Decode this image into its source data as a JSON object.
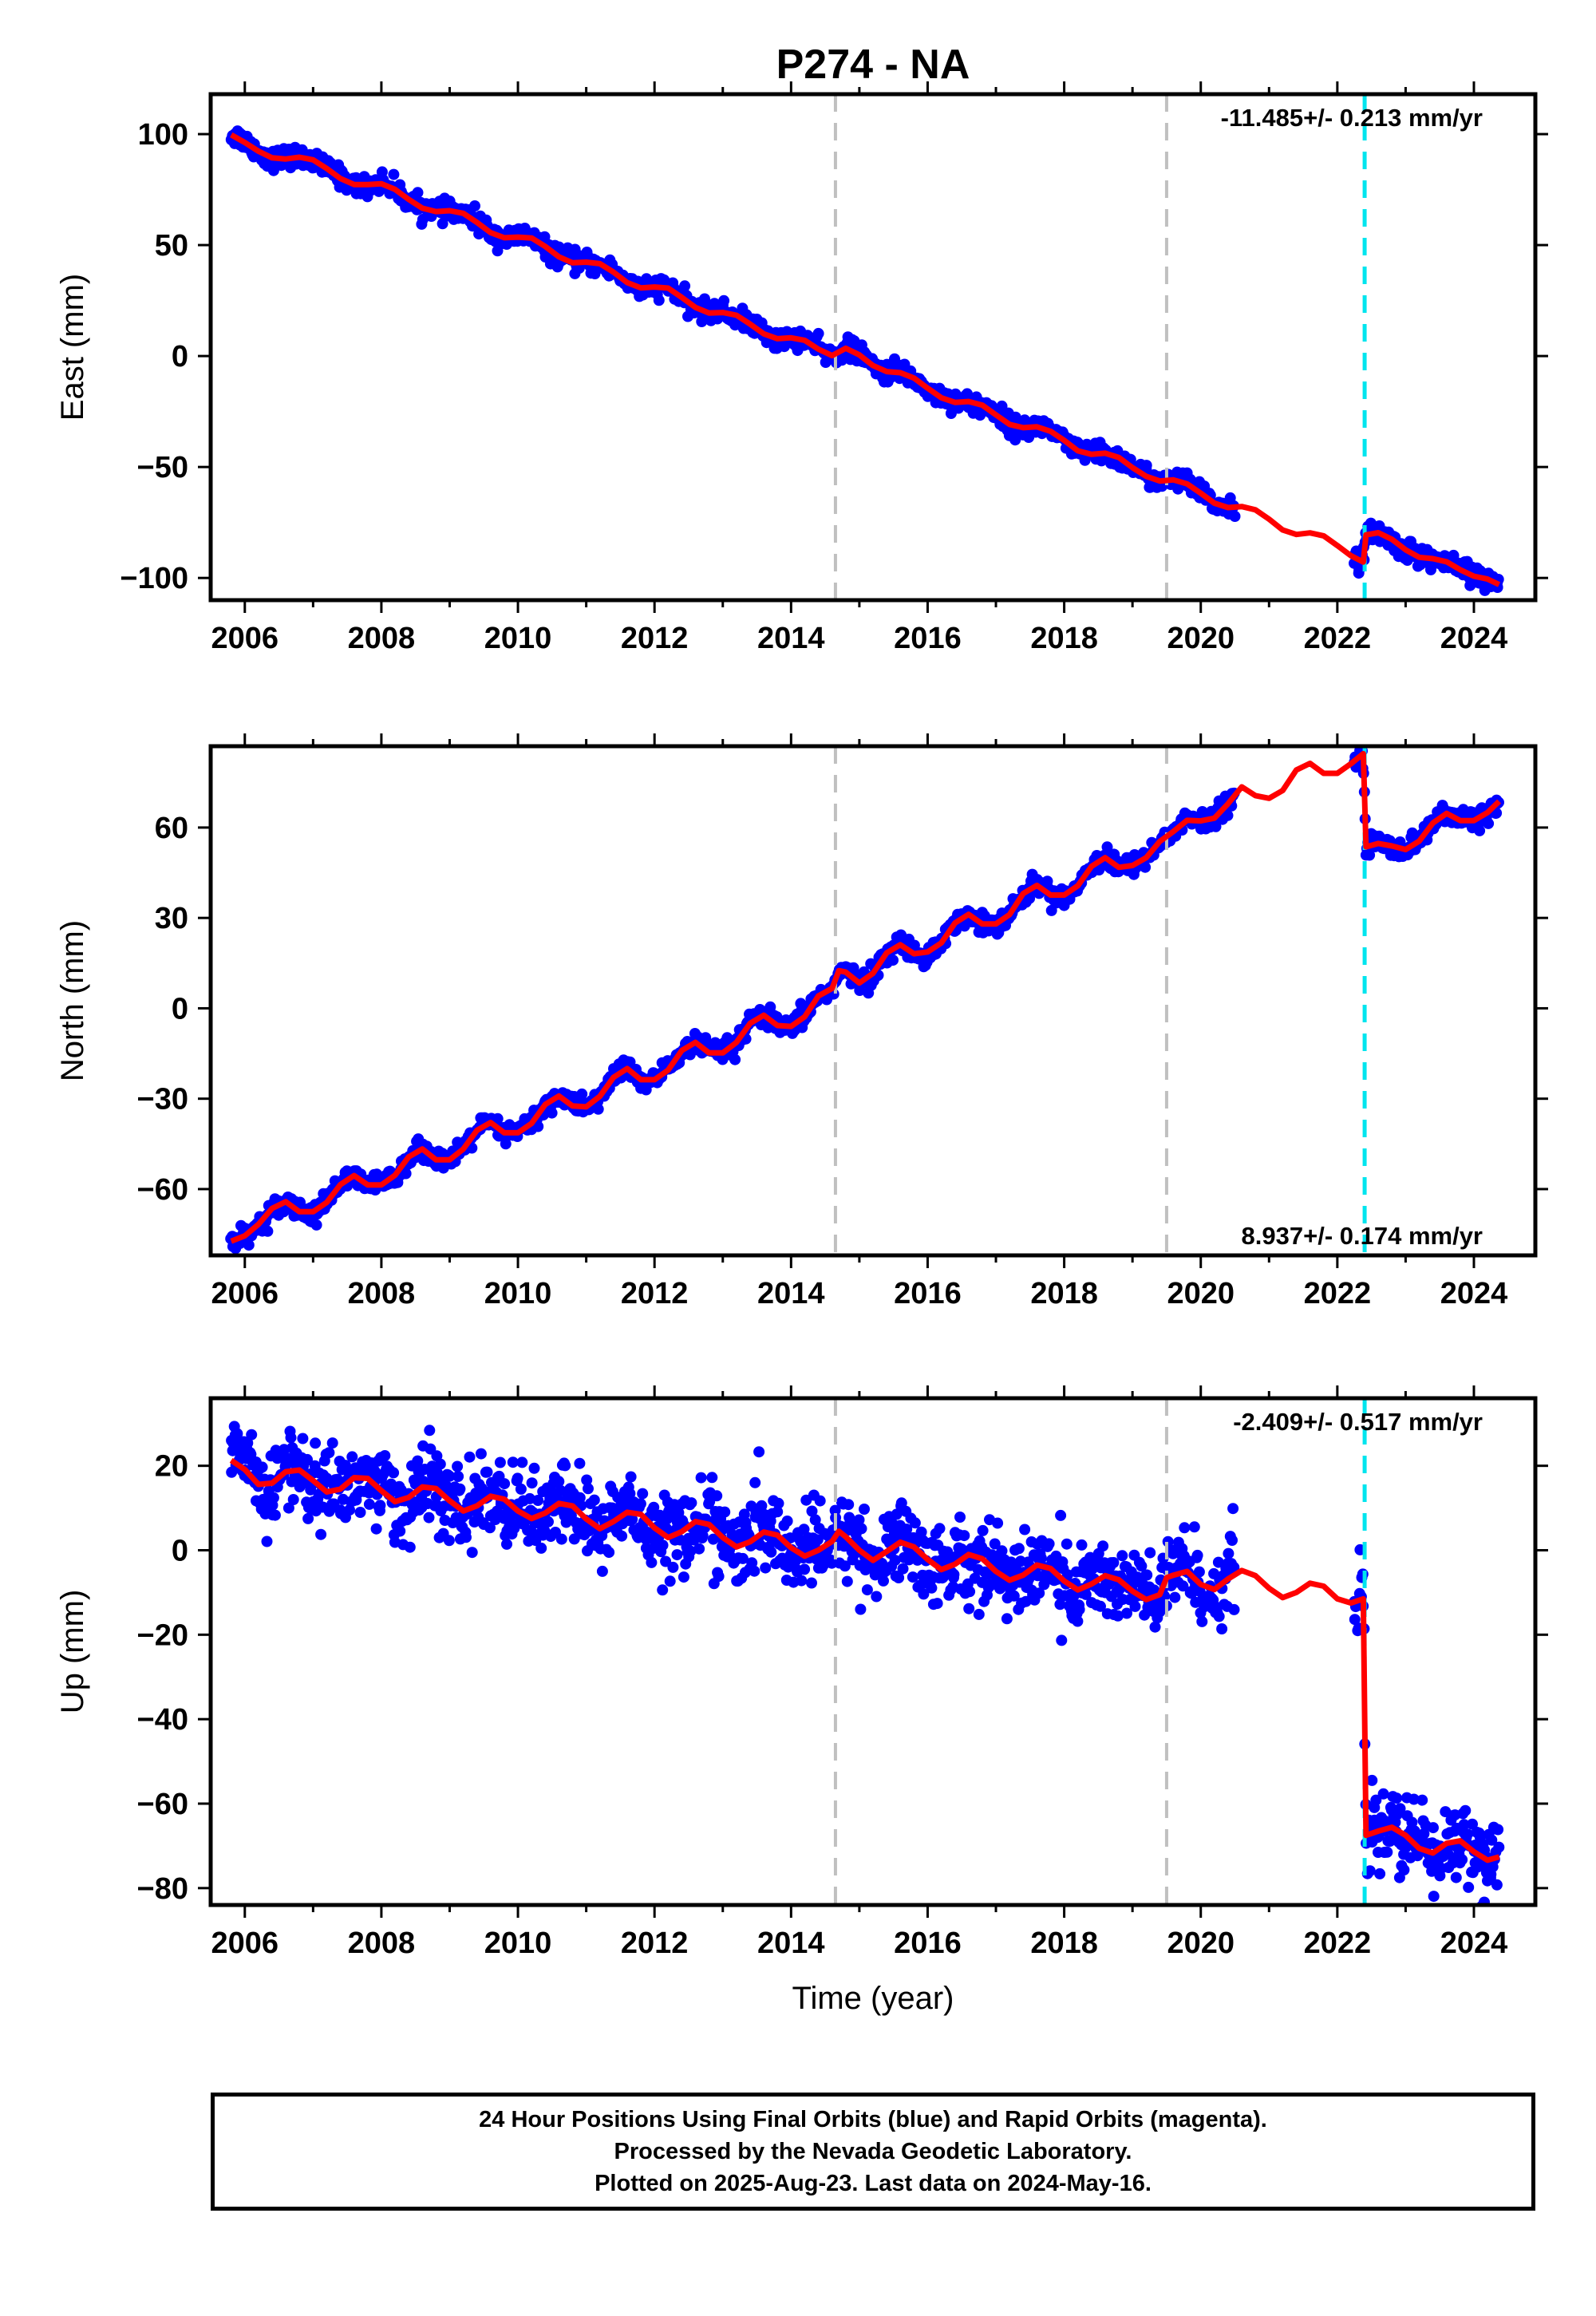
{
  "title": "P274 - NA",
  "colors": {
    "data": "#0000ff",
    "model": "#ff0000",
    "event_gray": "#c0c0c0",
    "event_cyan": "#00e5ee",
    "frame": "#000000"
  },
  "chart_data": [
    {
      "type": "scatter",
      "ylabel": "East (mm)",
      "xlabel": "",
      "xlim": [
        2005.5,
        2024.9
      ],
      "ylim": [
        -110,
        118
      ],
      "xticks": [
        2006,
        2008,
        2010,
        2012,
        2014,
        2016,
        2018,
        2020,
        2022,
        2024
      ],
      "yticks": [
        100,
        50,
        0,
        -50,
        -100
      ],
      "rate_text": "-11.485+/- 0.213 mm/yr",
      "rate_position": "top-right",
      "vlines": [
        {
          "x": 2014.65,
          "color": "gray"
        },
        {
          "x": 2019.5,
          "color": "gray"
        },
        {
          "x": 2022.4,
          "color": "cyan"
        }
      ],
      "data_segments": [
        [
          2005.8,
          2014.65
        ],
        [
          2014.65,
          2020.5
        ],
        [
          2022.25,
          2024.37
        ]
      ],
      "noise_sd": 2.2,
      "model_series": {
        "name": "",
        "x": [
          2005.8,
          2006.0,
          2006.2,
          2006.4,
          2006.6,
          2006.8,
          2007.0,
          2007.2,
          2007.4,
          2007.6,
          2007.8,
          2008.0,
          2008.2,
          2008.4,
          2008.6,
          2008.8,
          2009.0,
          2009.2,
          2009.4,
          2009.6,
          2009.8,
          2010.0,
          2010.2,
          2010.4,
          2010.6,
          2010.8,
          2011.0,
          2011.2,
          2011.4,
          2011.6,
          2011.8,
          2012.0,
          2012.2,
          2012.4,
          2012.6,
          2012.8,
          2013.0,
          2013.2,
          2013.4,
          2013.6,
          2013.8,
          2014.0,
          2014.2,
          2014.4,
          2014.6,
          2014.8,
          2015.0,
          2015.2,
          2015.4,
          2015.6,
          2015.8,
          2016.0,
          2016.2,
          2016.4,
          2016.6,
          2016.8,
          2017.0,
          2017.2,
          2017.4,
          2017.6,
          2017.8,
          2018.0,
          2018.2,
          2018.4,
          2018.6,
          2018.8,
          2019.0,
          2019.2,
          2019.4,
          2019.6,
          2019.8,
          2020.0,
          2020.2,
          2020.4,
          2020.6,
          2020.8,
          2021.0,
          2021.2,
          2021.4,
          2021.6,
          2021.8,
          2022.0,
          2022.2,
          2022.38,
          2022.42,
          2022.6,
          2022.8,
          2023.0,
          2023.2,
          2023.4,
          2023.6,
          2023.8,
          2024.0,
          2024.2,
          2024.37
        ],
        "y": [
          99.7,
          96.2,
          92.3,
          89.3,
          88.8,
          89.6,
          88.4,
          84.5,
          80.0,
          77.3,
          77.3,
          77.6,
          75.1,
          70.6,
          66.6,
          65.1,
          65.5,
          64.3,
          60.2,
          55.6,
          53.3,
          53.6,
          53.2,
          49.4,
          44.7,
          42.0,
          42.3,
          41.6,
          37.8,
          33.1,
          30.7,
          31.1,
          30.6,
          26.4,
          21.9,
          19.4,
          19.6,
          18.4,
          14.4,
          10.0,
          7.8,
          8.2,
          7.1,
          3.1,
          0.2,
          3.5,
          0.5,
          -4.3,
          -7.0,
          -7.5,
          -9.9,
          -14.5,
          -18.8,
          -20.9,
          -20.5,
          -22.1,
          -26.5,
          -30.8,
          -32.3,
          -31.9,
          -33.9,
          -38.0,
          -42.7,
          -44.3,
          -43.8,
          -45.7,
          -50.3,
          -54.2,
          -56.3,
          -55.8,
          -57.6,
          -61.8,
          -66.3,
          -68.3,
          -67.8,
          -69.3,
          -73.5,
          -78.4,
          -80.4,
          -79.7,
          -81.0,
          -85.4,
          -90.0,
          -92.8,
          -80.6,
          -79.6,
          -82.6,
          -87.3,
          -90.7,
          -91.3,
          -92.7,
          -96.3,
          -99.2,
          -100.5,
          -103.0
        ]
      }
    },
    {
      "type": "scatter",
      "ylabel": "North (mm)",
      "xlabel": "",
      "xlim": [
        2005.5,
        2024.9
      ],
      "ylim": [
        -82,
        87
      ],
      "xticks": [
        2006,
        2008,
        2010,
        2012,
        2014,
        2016,
        2018,
        2020,
        2022,
        2024
      ],
      "yticks": [
        60,
        30,
        0,
        -30,
        -60
      ],
      "rate_text": "8.937+/- 0.174 mm/yr",
      "rate_position": "bottom-right",
      "vlines": [
        {
          "x": 2014.65,
          "color": "gray"
        },
        {
          "x": 2019.5,
          "color": "gray"
        },
        {
          "x": 2022.4,
          "color": "cyan"
        }
      ],
      "data_segments": [
        [
          2005.8,
          2014.65
        ],
        [
          2014.65,
          2020.5
        ],
        [
          2022.25,
          2024.37
        ]
      ],
      "noise_sd": 1.6,
      "model_series": {
        "name": "",
        "x": [
          2005.8,
          2006.0,
          2006.2,
          2006.4,
          2006.6,
          2006.8,
          2007.0,
          2007.2,
          2007.4,
          2007.6,
          2007.8,
          2008.0,
          2008.2,
          2008.4,
          2008.6,
          2008.8,
          2009.0,
          2009.2,
          2009.4,
          2009.6,
          2009.8,
          2010.0,
          2010.2,
          2010.4,
          2010.6,
          2010.8,
          2011.0,
          2011.2,
          2011.4,
          2011.6,
          2011.8,
          2012.0,
          2012.2,
          2012.4,
          2012.6,
          2012.8,
          2013.0,
          2013.2,
          2013.4,
          2013.6,
          2013.8,
          2014.0,
          2014.2,
          2014.4,
          2014.6,
          2014.7,
          2014.8,
          2015.0,
          2015.2,
          2015.4,
          2015.6,
          2015.8,
          2016.0,
          2016.2,
          2016.4,
          2016.6,
          2016.8,
          2017.0,
          2017.2,
          2017.4,
          2017.6,
          2017.8,
          2018.0,
          2018.2,
          2018.4,
          2018.6,
          2018.8,
          2019.0,
          2019.2,
          2019.4,
          2019.6,
          2019.8,
          2020.0,
          2020.2,
          2020.4,
          2020.6,
          2020.8,
          2021.0,
          2021.2,
          2021.4,
          2021.6,
          2021.8,
          2022.0,
          2022.2,
          2022.38,
          2022.42,
          2022.6,
          2022.8,
          2023.0,
          2023.2,
          2023.4,
          2023.6,
          2023.8,
          2024.0,
          2024.2,
          2024.37
        ],
        "y": [
          -77.3,
          -75.5,
          -71.7,
          -66.4,
          -64.2,
          -67.5,
          -67.5,
          -64.4,
          -58.5,
          -55.5,
          -58.6,
          -58.6,
          -55.4,
          -49.3,
          -46.7,
          -50.3,
          -50.3,
          -46.7,
          -40.5,
          -37.9,
          -41.3,
          -41.3,
          -38.2,
          -31.9,
          -29.1,
          -32.4,
          -32.7,
          -29.2,
          -22.9,
          -20.0,
          -23.7,
          -23.7,
          -20.5,
          -14.0,
          -11.3,
          -14.8,
          -14.8,
          -11.3,
          -5.0,
          -2.3,
          -5.7,
          -6.0,
          -2.8,
          4.1,
          6.6,
          12.5,
          12.0,
          8.4,
          11.6,
          18.4,
          21.1,
          18.1,
          18.7,
          21.7,
          28.3,
          31.2,
          28.0,
          28.0,
          31.1,
          38.1,
          40.8,
          37.6,
          37.6,
          40.7,
          47.1,
          50.0,
          46.8,
          47.4,
          50.0,
          55.4,
          58.7,
          62.4,
          62.2,
          63.1,
          67.9,
          73.5,
          70.6,
          69.7,
          72.3,
          79.1,
          81.3,
          78.0,
          78.0,
          81.2,
          84.5,
          53.6,
          54.7,
          53.9,
          52.7,
          55.5,
          61.5,
          64.7,
          62.3,
          62.3,
          65.0,
          68.7
        ]
      }
    },
    {
      "type": "scatter",
      "ylabel": "Up (mm)",
      "xlabel": "Time (year)",
      "xlim": [
        2005.5,
        2024.9
      ],
      "ylim": [
        -84,
        36
      ],
      "xticks": [
        2006,
        2008,
        2010,
        2012,
        2014,
        2016,
        2018,
        2020,
        2022,
        2024
      ],
      "yticks": [
        20,
        0,
        -20,
        -40,
        -60,
        -80
      ],
      "rate_text": "-2.409+/- 0.517 mm/yr",
      "rate_position": "top-right",
      "vlines": [
        {
          "x": 2014.65,
          "color": "gray"
        },
        {
          "x": 2019.5,
          "color": "gray"
        },
        {
          "x": 2022.4,
          "color": "cyan"
        }
      ],
      "data_segments": [
        [
          2005.8,
          2014.65
        ],
        [
          2014.65,
          2020.5
        ],
        [
          2022.25,
          2024.37
        ]
      ],
      "noise_sd": 4.8,
      "model_series": {
        "name": "",
        "x": [
          2005.8,
          2006.0,
          2006.2,
          2006.4,
          2006.6,
          2006.8,
          2007.0,
          2007.2,
          2007.4,
          2007.6,
          2007.8,
          2008.0,
          2008.2,
          2008.4,
          2008.6,
          2008.8,
          2009.0,
          2009.2,
          2009.4,
          2009.6,
          2009.8,
          2010.0,
          2010.2,
          2010.4,
          2010.6,
          2010.8,
          2011.0,
          2011.2,
          2011.4,
          2011.6,
          2011.8,
          2012.0,
          2012.2,
          2012.4,
          2012.6,
          2012.8,
          2013.0,
          2013.2,
          2013.4,
          2013.6,
          2013.8,
          2014.0,
          2014.2,
          2014.4,
          2014.6,
          2014.7,
          2014.8,
          2015.0,
          2015.2,
          2015.4,
          2015.6,
          2015.8,
          2016.0,
          2016.2,
          2016.4,
          2016.6,
          2016.8,
          2017.0,
          2017.2,
          2017.4,
          2017.6,
          2017.8,
          2018.0,
          2018.2,
          2018.4,
          2018.6,
          2018.8,
          2019.0,
          2019.2,
          2019.4,
          2019.5,
          2019.6,
          2019.8,
          2020.0,
          2020.2,
          2020.4,
          2020.6,
          2020.8,
          2021.0,
          2021.2,
          2021.4,
          2021.6,
          2021.8,
          2022.0,
          2022.2,
          2022.38,
          2022.42,
          2022.6,
          2022.8,
          2023.0,
          2023.2,
          2023.4,
          2023.6,
          2023.8,
          2024.0,
          2024.2,
          2024.37
        ],
        "y": [
          21.3,
          19.1,
          15.6,
          15.9,
          18.6,
          19.0,
          16.5,
          13.8,
          14.5,
          17.2,
          17.0,
          14.1,
          11.5,
          12.5,
          15.0,
          14.6,
          11.7,
          9.3,
          10.5,
          12.8,
          12.1,
          9.3,
          7.5,
          8.8,
          11.1,
          10.5,
          7.4,
          5.1,
          6.8,
          9.0,
          8.5,
          5.3,
          3.0,
          4.4,
          6.8,
          6.1,
          3.0,
          0.8,
          2.0,
          4.3,
          3.6,
          0.6,
          -1.4,
          0.0,
          2.1,
          4.5,
          3.2,
          0.0,
          -2.4,
          -0.3,
          1.9,
          0.8,
          -2.2,
          -4.6,
          -3.3,
          -1.0,
          -2.0,
          -5.0,
          -7.1,
          -5.9,
          -3.5,
          -4.3,
          -7.3,
          -9.4,
          -8.0,
          -6.0,
          -7.0,
          -9.7,
          -11.7,
          -10.5,
          -6.5,
          -5.9,
          -5.0,
          -8.1,
          -9.3,
          -6.8,
          -4.8,
          -6.0,
          -9.0,
          -11.2,
          -10.0,
          -7.8,
          -8.5,
          -11.5,
          -12.5,
          -11.5,
          -67.5,
          -66.5,
          -65.6,
          -67.5,
          -70.6,
          -71.7,
          -69.4,
          -68.8,
          -71.4,
          -73.4,
          -72.6
        ]
      }
    }
  ],
  "footer": {
    "line1": "24 Hour Positions Using Final Orbits (blue) and Rapid Orbits (magenta).",
    "line2": "Processed by the Nevada Geodetic Laboratory.",
    "line3": "Plotted on 2025-Aug-23. Last data on 2024-May-16."
  }
}
